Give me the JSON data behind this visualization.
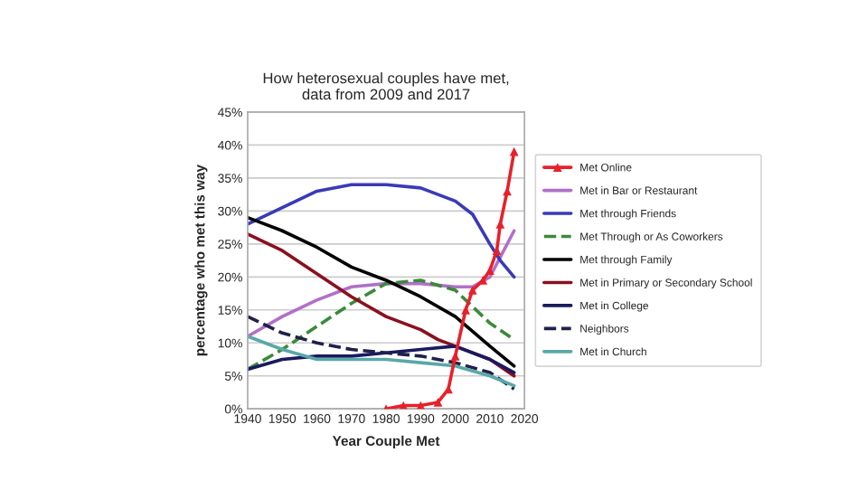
{
  "chart_data": {
    "type": "line",
    "title": "How heterosexual couples have met,\ndata from 2009 and 2017",
    "xlabel": "Year Couple Met",
    "ylabel": "percentage who met this way",
    "xlim": [
      1940,
      2020
    ],
    "xticks": [
      1940,
      1950,
      1960,
      1970,
      1980,
      1990,
      2000,
      2010,
      2020
    ],
    "ylim": [
      0,
      45
    ],
    "yticks": [
      {
        "value": 0,
        "label": "0%"
      },
      {
        "value": 5,
        "label": "5%"
      },
      {
        "value": 10,
        "label": "10%"
      },
      {
        "value": 15,
        "label": "15%"
      },
      {
        "value": 20,
        "label": "20%"
      },
      {
        "value": 25,
        "label": "25%"
      },
      {
        "value": 30,
        "label": "30%"
      },
      {
        "value": 35,
        "label": "35%"
      },
      {
        "value": 40,
        "label": "40%"
      },
      {
        "value": 45,
        "label": "45%"
      }
    ],
    "grid": "y",
    "legend": "right",
    "line_style": "solid",
    "series": [
      {
        "name": "Met Online",
        "color": "#e8202a",
        "marker": "triangle",
        "x": [
          1980,
          1985,
          1990,
          1995,
          1998,
          2000,
          2003,
          2005,
          2008,
          2010,
          2012,
          2013,
          2015,
          2017
        ],
        "values": [
          0,
          0.5,
          0.5,
          1,
          3,
          8,
          15,
          18,
          19.5,
          21,
          24,
          28,
          33,
          39
        ]
      },
      {
        "name": "Met in Bar or Restaurant",
        "color": "#b070c8",
        "x": [
          1940,
          1950,
          1960,
          1970,
          1980,
          1990,
          2000,
          2005,
          2010,
          2017
        ],
        "values": [
          11,
          14,
          16.5,
          18.5,
          19,
          19,
          18.5,
          18.5,
          20,
          27
        ]
      },
      {
        "name": "Met through Friends",
        "color": "#3a3ab8",
        "x": [
          1940,
          1950,
          1960,
          1970,
          1980,
          1990,
          2000,
          2005,
          2010,
          2013,
          2017
        ],
        "values": [
          28,
          30.5,
          33,
          34,
          34,
          33.5,
          31.5,
          29.5,
          25,
          22.5,
          20
        ]
      },
      {
        "name": "Met Through or As Coworkers",
        "color": "#3a8a3a",
        "line_style": "dashed",
        "x": [
          1940,
          1950,
          1960,
          1970,
          1980,
          1990,
          2000,
          2010,
          2017
        ],
        "values": [
          6,
          9,
          12.5,
          16,
          19,
          19.5,
          18,
          13,
          10.5
        ]
      },
      {
        "name": "Met through Family",
        "color": "#000000",
        "x": [
          1940,
          1950,
          1960,
          1970,
          1980,
          1990,
          2000,
          2010,
          2017
        ],
        "values": [
          29,
          27,
          24.5,
          21.5,
          19.5,
          17,
          14,
          9.5,
          6.5
        ]
      },
      {
        "name": "Met in Primary or Secondary School",
        "color": "#8a1020",
        "x": [
          1940,
          1950,
          1960,
          1970,
          1980,
          1985,
          1990,
          1995,
          2000,
          2010,
          2017
        ],
        "values": [
          26.5,
          24,
          20.5,
          17,
          14,
          13,
          12,
          10.5,
          9.5,
          7.5,
          5
        ]
      },
      {
        "name": "Met in College",
        "color": "#1a1a60",
        "x": [
          1940,
          1950,
          1960,
          1970,
          1980,
          1990,
          2000,
          2010,
          2017
        ],
        "values": [
          6,
          7.5,
          8,
          8,
          8.5,
          9,
          9.5,
          7.5,
          5.5
        ]
      },
      {
        "name": "Neighbors",
        "color": "#20204a",
        "line_style": "dashed",
        "x": [
          1940,
          1950,
          1960,
          1970,
          1980,
          1990,
          2000,
          2010,
          2017
        ],
        "values": [
          14,
          11.5,
          10,
          9,
          8.5,
          8,
          7,
          5.5,
          3
        ]
      },
      {
        "name": "Met in Church",
        "color": "#5aa8a8",
        "x": [
          1940,
          1950,
          1960,
          1970,
          1980,
          1990,
          2000,
          2010,
          2017
        ],
        "values": [
          11,
          9,
          7.5,
          7.5,
          7.5,
          7,
          6.5,
          5,
          3.5
        ]
      }
    ]
  }
}
